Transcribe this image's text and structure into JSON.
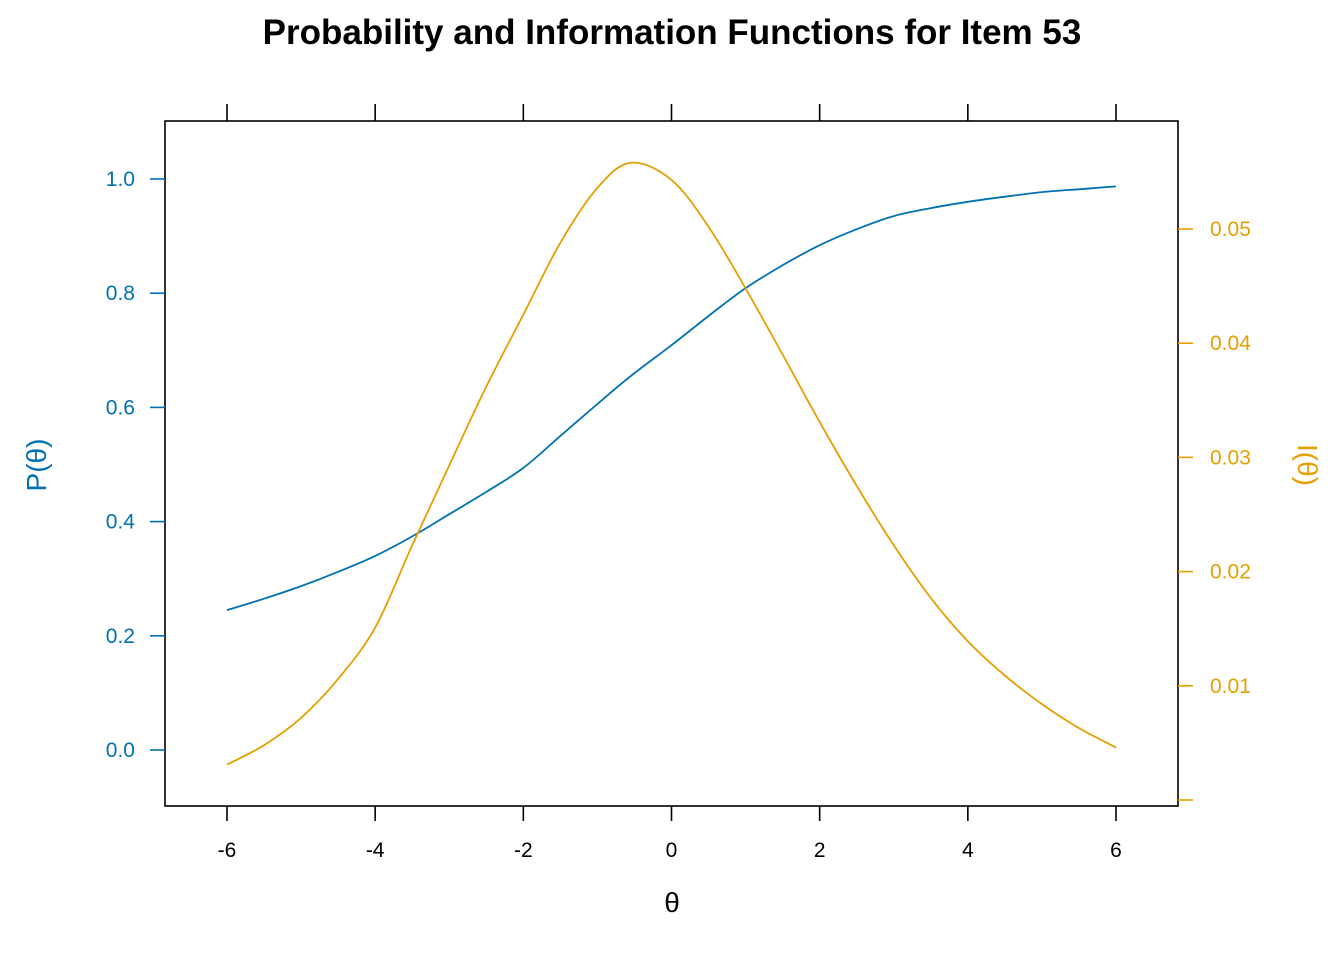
{
  "chart_data": {
    "type": "line",
    "title": "Probability and Information Functions for Item 53",
    "xlabel": "θ",
    "ylabel": "P(θ)",
    "ylabel_right": "I(θ)",
    "xlim": [
      -6.85,
      6.85
    ],
    "ylim": [
      -0.1,
      1.1
    ],
    "ylim_right": [
      0,
      0.06
    ],
    "x_ticks": [
      -6,
      -4,
      -2,
      0,
      2,
      4,
      6
    ],
    "x_tick_labels": [
      "-6",
      "-4",
      "-2",
      "0",
      "2",
      "4",
      "6"
    ],
    "y_ticks": [
      0.0,
      0.2,
      0.4,
      0.6,
      0.8,
      1.0
    ],
    "y_tick_labels": [
      "0.0",
      "0.2",
      "0.4",
      "0.6",
      "0.8",
      "1.0"
    ],
    "y_right_ticks": [
      0.0,
      0.01,
      0.02,
      0.03,
      0.04,
      0.05
    ],
    "y_right_tick_labels": [
      "",
      "0.01",
      "0.02",
      "0.03",
      "0.04",
      "0.05"
    ],
    "grid": false,
    "legend": null,
    "x": [
      -6,
      -5.5,
      -5,
      -4.5,
      -4,
      -3.5,
      -3,
      -2.5,
      -2,
      -1.5,
      -1,
      -0.55,
      0,
      0.5,
      1,
      1.5,
      2,
      2.5,
      3,
      3.5,
      4,
      4.5,
      5,
      5.5,
      6
    ],
    "series": [
      {
        "name": "P(θ)",
        "axis": "left",
        "color": "#0072B2",
        "values": [
          0.245,
          0.265,
          0.287,
          0.312,
          0.34,
          0.374,
          0.413,
          0.452,
          0.494,
          0.55,
          0.606,
          0.655,
          0.709,
          0.76,
          0.809,
          0.849,
          0.884,
          0.912,
          0.935,
          0.949,
          0.96,
          0.969,
          0.977,
          0.982,
          0.987
        ]
      },
      {
        "name": "I(θ)",
        "axis": "right",
        "color": "#E69F00",
        "values": [
          0.0031,
          0.0048,
          0.0072,
          0.0106,
          0.0151,
          0.0223,
          0.0293,
          0.0362,
          0.0425,
          0.0488,
          0.0536,
          0.0558,
          0.0543,
          0.0502,
          0.0448,
          0.039,
          0.0331,
          0.0275,
          0.0223,
          0.0177,
          0.0139,
          0.0109,
          0.0084,
          0.0063,
          0.0046
        ]
      }
    ]
  },
  "colors": {
    "left_axis": "#0072B2",
    "right_axis": "#E69F00",
    "frame": "#000000"
  }
}
